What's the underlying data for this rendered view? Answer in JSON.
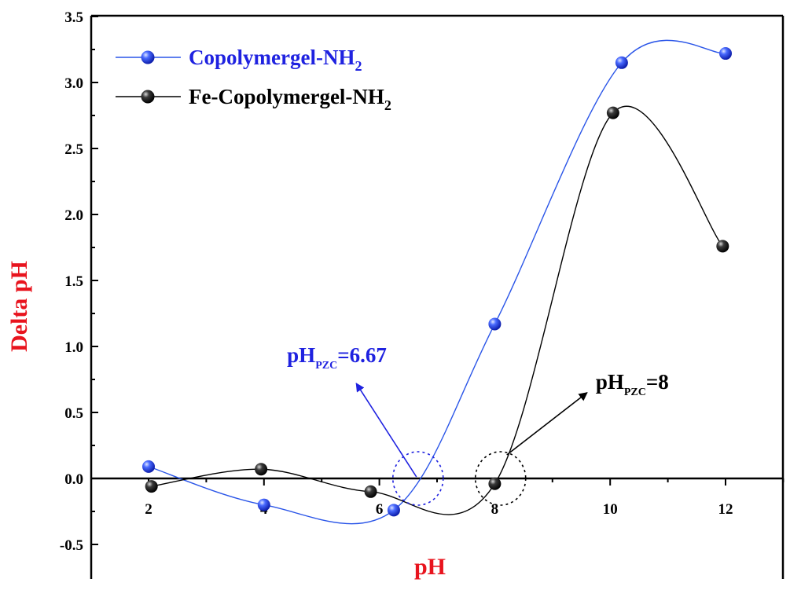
{
  "chart_data": {
    "type": "scatter",
    "xlabel": "pH",
    "ylabel": "Delta pH",
    "xlim": [
      1.2,
      13.0
    ],
    "ylim": [
      -0.7,
      3.5
    ],
    "xticks": [
      "2",
      "4",
      "6",
      "8",
      "10",
      "12"
    ],
    "yticks": [
      "-0.5",
      "0.0",
      "0.5",
      "1.0",
      "1.5",
      "2.0",
      "2.5",
      "3.0",
      "3.5"
    ],
    "grid": false,
    "legend_position": "top-left",
    "series": [
      {
        "name": "Copolymergel-NH",
        "name_subscript": "2",
        "color": "#1f22e0",
        "line_color": "#2a55e8",
        "x": [
          2.0,
          4.0,
          6.25,
          8.0,
          10.2,
          12.0
        ],
        "y": [
          0.09,
          -0.2,
          -0.24,
          1.17,
          3.15,
          3.22
        ]
      },
      {
        "name": "Fe-Copolymergel-NH",
        "name_subscript": "2",
        "color": "#000000",
        "line_color": "#000000",
        "x": [
          2.05,
          3.95,
          5.85,
          8.0,
          10.05,
          11.95
        ],
        "y": [
          -0.06,
          0.07,
          -0.1,
          -0.04,
          2.77,
          1.76
        ]
      }
    ],
    "annotations": [
      {
        "main": "pH",
        "sub": "PZC",
        "value": "=6.67",
        "color": "#1f22e0",
        "circle_center": [
          6.67,
          0.0
        ],
        "arrow_to": [
          5.6,
          0.72
        ],
        "text_at": [
          4.4,
          0.88
        ]
      },
      {
        "main": "pH",
        "sub": "PZC",
        "value": "=8",
        "color": "#000000",
        "circle_center": [
          8.1,
          0.0
        ],
        "arrow_to": [
          9.6,
          0.65
        ],
        "text_at": [
          9.75,
          0.68
        ]
      }
    ]
  }
}
